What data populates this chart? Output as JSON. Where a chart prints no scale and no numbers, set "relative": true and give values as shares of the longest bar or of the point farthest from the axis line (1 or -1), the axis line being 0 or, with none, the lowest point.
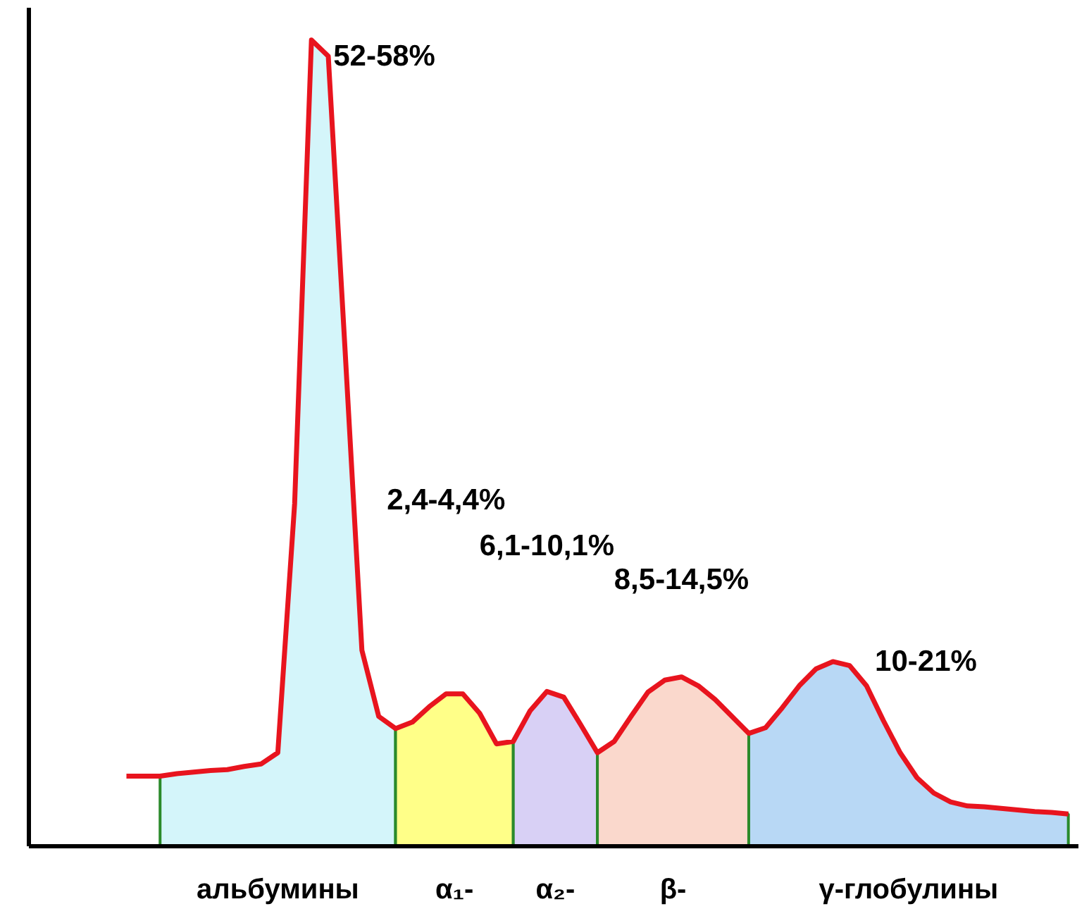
{
  "chart_data": {
    "type": "area",
    "relative": true,
    "grid": false,
    "categories": [
      null,
      null,
      null,
      null,
      null,
      null,
      null,
      null,
      null,
      null,
      null,
      null,
      null,
      null,
      null,
      null,
      null,
      null,
      null,
      null,
      null,
      null,
      null,
      null,
      null,
      null,
      null,
      null,
      null,
      null,
      null,
      null,
      null,
      null,
      null,
      null,
      null,
      null,
      null,
      null,
      null,
      null,
      null,
      null,
      null,
      null,
      null,
      null,
      null,
      null,
      null,
      null,
      null,
      null,
      null,
      null,
      null
    ],
    "series": [
      {
        "type": "line",
        "color": "#e8141e",
        "values": [
          0.087,
          0.087,
          0.087,
          0.09,
          0.092,
          0.094,
          0.095,
          0.099,
          0.102,
          0.116,
          0.425,
          1.0,
          0.98,
          0.615,
          0.243,
          0.161,
          0.146,
          0.154,
          0.173,
          0.189,
          0.189,
          0.165,
          0.127,
          0.13,
          0.168,
          0.192,
          0.185,
          0.151,
          0.116,
          0.13,
          0.161,
          0.191,
          0.206,
          0.21,
          0.199,
          0.182,
          0.161,
          0.14,
          0.147,
          0.172,
          0.199,
          0.22,
          0.229,
          0.224,
          0.199,
          0.156,
          0.116,
          0.085,
          0.066,
          0.055,
          0.05,
          0.049,
          0.047,
          0.045,
          0.043,
          0.042,
          0.04
        ]
      },
      {
        "name": "альбумины",
        "color": "#d4f5fa",
        "values": [
          null,
          null,
          0.087,
          0.09,
          0.092,
          0.094,
          0.095,
          0.099,
          0.102,
          0.116,
          0.425,
          1.0,
          0.98,
          0.615,
          0.243,
          0.161,
          0.146,
          null,
          null,
          null,
          null,
          null,
          null,
          null,
          null,
          null,
          null,
          null,
          null,
          null,
          null,
          null,
          null,
          null,
          null,
          null,
          null,
          null,
          null,
          null,
          null,
          null,
          null,
          null,
          null,
          null,
          null,
          null,
          null,
          null,
          null,
          null,
          null,
          null,
          null,
          null,
          null
        ]
      },
      {
        "name": "α₁-",
        "color": "#ffff88",
        "values": [
          null,
          null,
          null,
          null,
          null,
          null,
          null,
          null,
          null,
          null,
          null,
          null,
          null,
          null,
          null,
          null,
          0.146,
          0.154,
          0.173,
          0.189,
          0.189,
          0.165,
          0.127,
          0.13,
          null,
          null,
          null,
          null,
          null,
          null,
          null,
          null,
          null,
          null,
          null,
          null,
          null,
          null,
          null,
          null,
          null,
          null,
          null,
          null,
          null,
          null,
          null,
          null,
          null,
          null,
          null,
          null,
          null,
          null,
          null,
          null,
          null
        ]
      },
      {
        "name": "α₂-",
        "color": "#d8d0f5",
        "values": [
          null,
          null,
          null,
          null,
          null,
          null,
          null,
          null,
          null,
          null,
          null,
          null,
          null,
          null,
          null,
          null,
          null,
          null,
          null,
          null,
          null,
          null,
          null,
          0.13,
          0.168,
          0.192,
          0.185,
          0.151,
          0.116,
          null,
          null,
          null,
          null,
          null,
          null,
          null,
          null,
          null,
          null,
          null,
          null,
          null,
          null,
          null,
          null,
          null,
          null,
          null,
          null,
          null,
          null,
          null,
          null,
          null,
          null,
          null,
          null
        ]
      },
      {
        "name": "β-",
        "color": "#fad8cc",
        "values": [
          null,
          null,
          null,
          null,
          null,
          null,
          null,
          null,
          null,
          null,
          null,
          null,
          null,
          null,
          null,
          null,
          null,
          null,
          null,
          null,
          null,
          null,
          null,
          null,
          null,
          null,
          null,
          null,
          0.116,
          0.13,
          0.161,
          0.191,
          0.206,
          0.21,
          0.199,
          0.182,
          0.161,
          0.14,
          null,
          null,
          null,
          null,
          null,
          null,
          null,
          null,
          null,
          null,
          null,
          null,
          null,
          null,
          null,
          null,
          null,
          null,
          null
        ]
      },
      {
        "name": "γ-глобулины",
        "color": "#b8d8f5",
        "values": [
          null,
          null,
          null,
          null,
          null,
          null,
          null,
          null,
          null,
          null,
          null,
          null,
          null,
          null,
          null,
          null,
          null,
          null,
          null,
          null,
          null,
          null,
          null,
          null,
          null,
          null,
          null,
          null,
          null,
          null,
          null,
          null,
          null,
          null,
          null,
          null,
          null,
          0.14,
          0.147,
          0.172,
          0.199,
          0.22,
          0.229,
          0.224,
          0.199,
          0.156,
          0.116,
          0.085,
          0.066,
          0.055,
          0.05,
          0.049,
          0.047,
          0.045,
          0.043,
          0.042,
          0.04
        ]
      }
    ],
    "annotations": [
      "52-58%",
      "2,4-4,4%",
      "6,1-10,1%",
      "8,5-14,5%",
      "10-21%"
    ]
  }
}
